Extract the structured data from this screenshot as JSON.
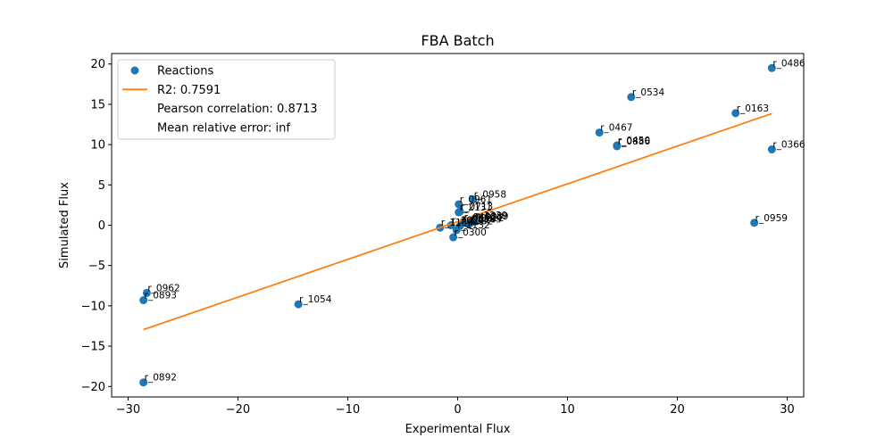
{
  "chart_data": {
    "type": "scatter",
    "title": "FBA Batch",
    "xlabel": "Experimental Flux",
    "ylabel": "Simulated Flux",
    "xlim": [
      -31.5,
      31.5
    ],
    "ylim": [
      -21.3,
      21.3
    ],
    "xticks": [
      -30,
      -20,
      -10,
      0,
      10,
      20,
      30
    ],
    "xtick_labels": [
      "−30",
      "−20",
      "−10",
      "0",
      "10",
      "20",
      "30"
    ],
    "yticks": [
      -20,
      -15,
      -10,
      -5,
      0,
      5,
      10,
      15,
      20
    ],
    "ytick_labels": [
      "−20",
      "−15",
      "−10",
      "−5",
      "0",
      "5",
      "10",
      "15",
      "20"
    ],
    "grid": false,
    "legend_position": "top-left",
    "legend": [
      {
        "label": "Reactions",
        "marker": "dot"
      },
      {
        "label": "R2: 0.7591",
        "marker": "line"
      },
      {
        "label": "Pearson correlation: 0.8713",
        "marker": "none"
      },
      {
        "label": "Mean relative error: inf",
        "marker": "none"
      }
    ],
    "colors": {
      "points": "#1f77b4",
      "fit": "#ff7f0e"
    },
    "series": [
      {
        "name": "Reactions",
        "kind": "scatter",
        "points": [
          {
            "x": 28.6,
            "y": 19.5,
            "label": "r_0486"
          },
          {
            "x": 15.8,
            "y": 15.9,
            "label": "r_0534"
          },
          {
            "x": 25.3,
            "y": 13.9,
            "label": "r_0163"
          },
          {
            "x": 12.9,
            "y": 11.5,
            "label": "r_0467"
          },
          {
            "x": 14.5,
            "y": 9.9,
            "label": "r_0450"
          },
          {
            "x": 14.5,
            "y": 9.8,
            "label": "r_0886"
          },
          {
            "x": 28.6,
            "y": 9.4,
            "label": "r_0366"
          },
          {
            "x": 1.4,
            "y": 3.2,
            "label": "r_0958"
          },
          {
            "x": 0.1,
            "y": 2.6,
            "label": "r_0961"
          },
          {
            "x": 0.2,
            "y": 1.7,
            "label": "r_0713"
          },
          {
            "x": 0.1,
            "y": 1.6,
            "label": "r_2131"
          },
          {
            "x": 27.0,
            "y": 0.3,
            "label": "r_0959"
          },
          {
            "x": 1.5,
            "y": 0.6,
            "label": "r_1239"
          },
          {
            "x": 1.6,
            "y": 0.5,
            "label": "r_0889"
          },
          {
            "x": 1.2,
            "y": 0.3,
            "label": "r_0322"
          },
          {
            "x": 1.0,
            "y": 0.1,
            "label": "r_0109"
          },
          {
            "x": 0.4,
            "y": 0.2,
            "label": "r_0532"
          },
          {
            "x": 0.2,
            "y": -0.1,
            "label": "r_1032"
          },
          {
            "x": 0.5,
            "y": 0.4,
            "label": "r_0462"
          },
          {
            "x": -0.6,
            "y": 0.0,
            "label": "r_1021"
          },
          {
            "x": -1.6,
            "y": -0.3,
            "label": "r_1135"
          },
          {
            "x": -0.1,
            "y": -0.6,
            "label": "r_1132"
          },
          {
            "x": -0.4,
            "y": -1.5,
            "label": "r_0300"
          },
          {
            "x": -28.3,
            "y": -8.4,
            "label": "r_0962"
          },
          {
            "x": -28.6,
            "y": -9.3,
            "label": "r_0893"
          },
          {
            "x": -14.5,
            "y": -9.8,
            "label": "r_1054"
          },
          {
            "x": -28.6,
            "y": -19.5,
            "label": "r_0892"
          }
        ]
      },
      {
        "name": "R2: 0.7591",
        "kind": "line",
        "x": [
          -28.6,
          28.6
        ],
        "y": [
          -12.95,
          13.85
        ]
      }
    ]
  }
}
